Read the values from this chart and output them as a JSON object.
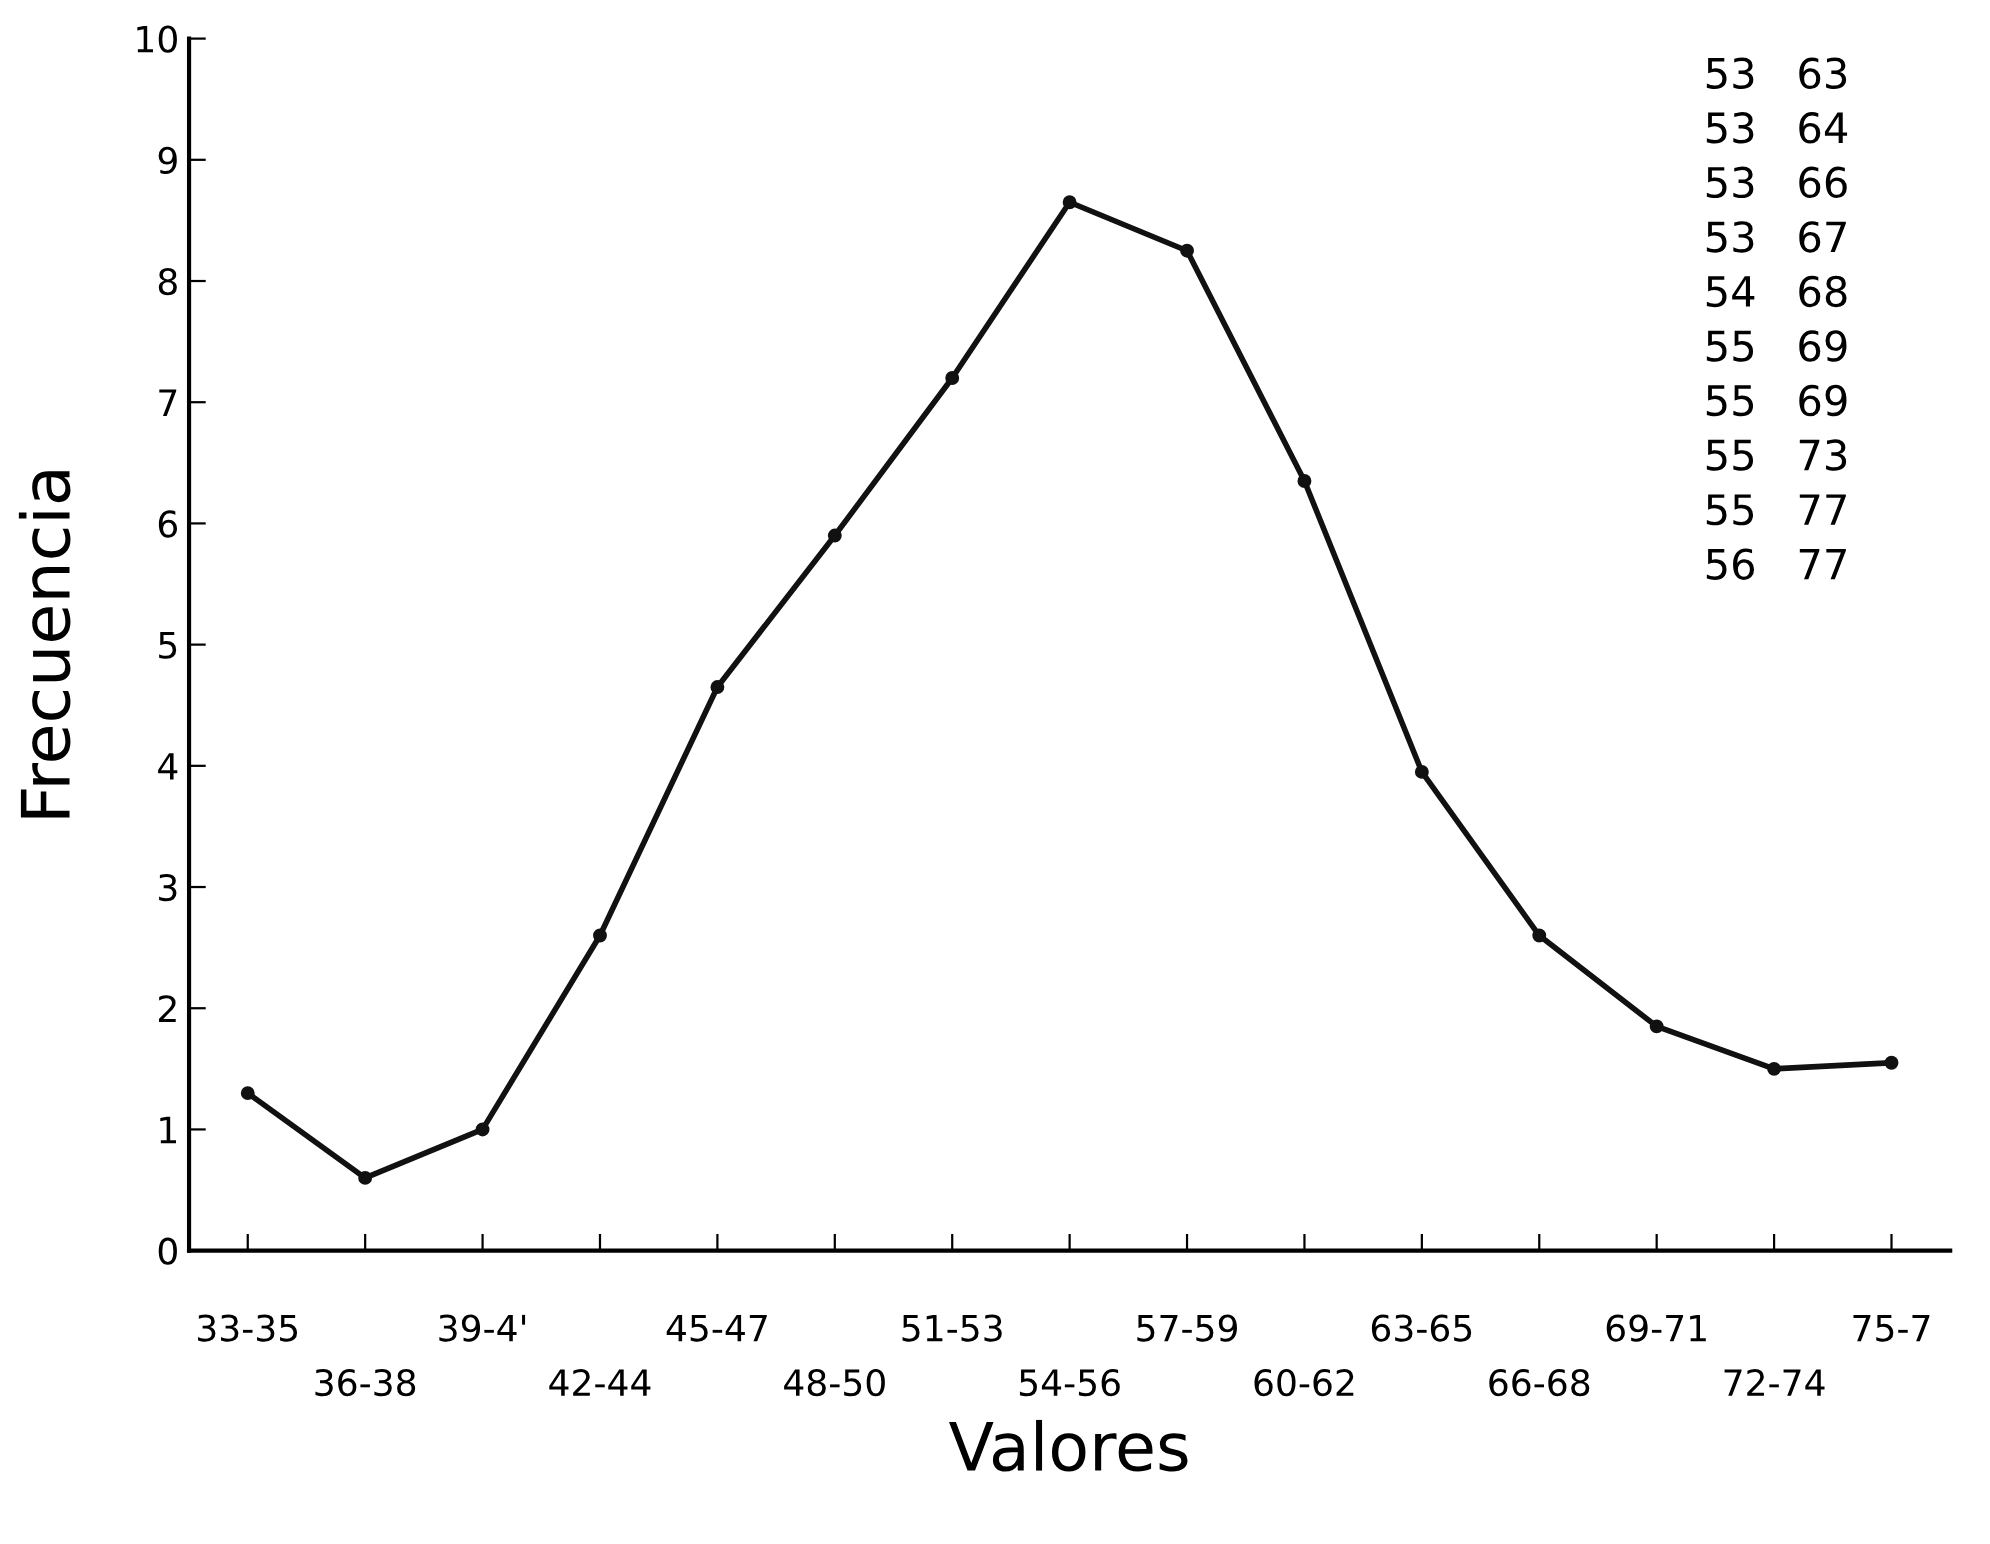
{
  "chart_data": {
    "type": "line",
    "xlabel": "Valores",
    "ylabel": "Frecuencia",
    "categories": [
      "33-35",
      "36-38",
      "39-4'",
      "42-44",
      "45-47",
      "48-50",
      "51-53",
      "54-56",
      "57-59",
      "60-62",
      "63-65",
      "66-68",
      "69-71",
      "72-74",
      "75-7"
    ],
    "series": [
      {
        "color": "#111111",
        "values": [
          1.3,
          0.6,
          1.0,
          2.6,
          4.65,
          5.9,
          7.2,
          8.65,
          8.25,
          6.35,
          3.95,
          2.6,
          1.85,
          1.5,
          1.55
        ]
      }
    ],
    "ylim": [
      0,
      10
    ],
    "yticks": [
      0,
      1,
      2,
      3,
      4,
      5,
      6,
      7,
      8,
      9,
      10
    ],
    "grid": false,
    "marker": "circle",
    "line_style": "solid",
    "annotations": [
      "53   63",
      "53   64",
      "53   66",
      "53   67",
      "54   68",
      "55   69",
      "55   69",
      "55   73",
      "55   77",
      "56   77"
    ]
  }
}
